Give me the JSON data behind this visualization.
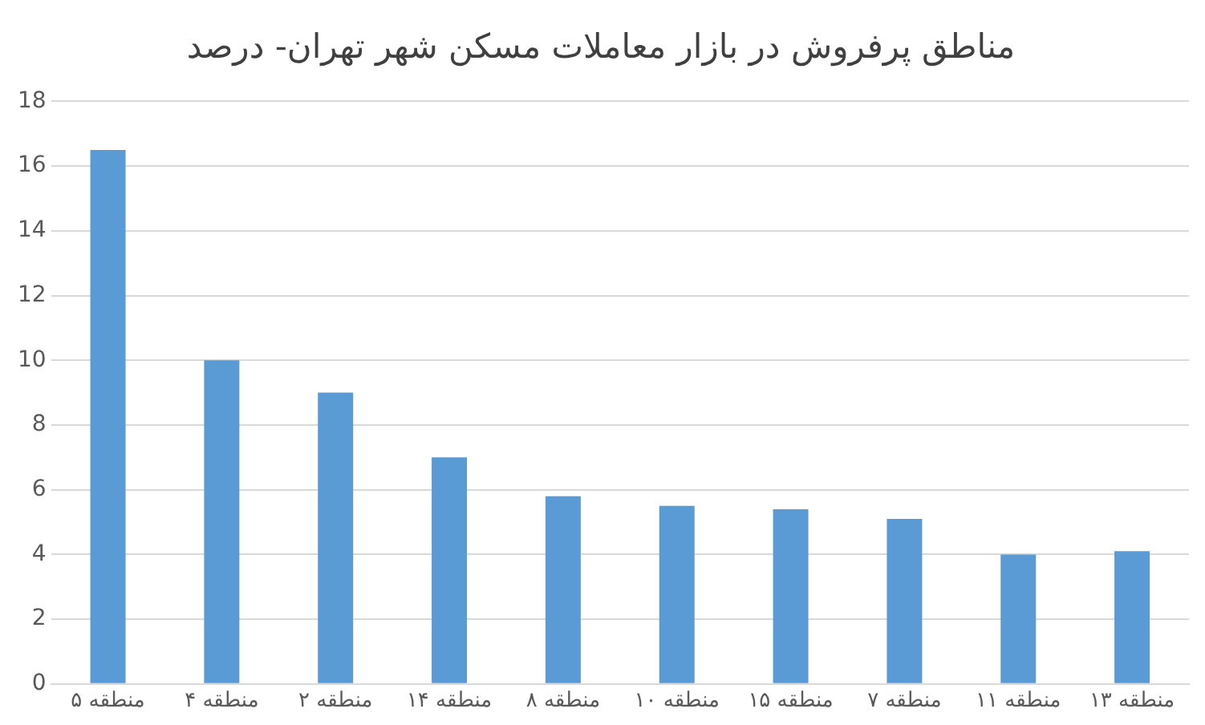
{
  "chart_data": {
    "type": "bar",
    "title": "مناطق پرفروش در بازار معاملات مسکن شهر تهران- درصد",
    "categories": [
      "منطقه ۵",
      "منطقه ۴",
      "منطقه ۲",
      "منطقه ۱۴",
      "منطقه ۸",
      "منطقه ۱۰",
      "منطقه ۱۵",
      "منطقه ۷",
      "منطقه ۱۱",
      "منطقه ۱۳"
    ],
    "values": [
      16.5,
      10,
      9,
      7,
      5.8,
      5.5,
      5.4,
      5.1,
      4,
      4.1
    ],
    "color": "#5b9bd5",
    "ylim": [
      0,
      18
    ],
    "yticks": [
      0,
      2,
      4,
      6,
      8,
      10,
      12,
      14,
      16,
      18
    ],
    "grid": "y",
    "legend": false
  }
}
